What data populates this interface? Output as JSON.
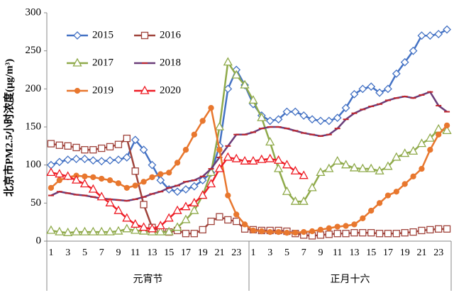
{
  "chart_data": {
    "type": "line",
    "y_label": "北京市PM2.5小时浓度(μg/m³)",
    "categories": [
      "1",
      null,
      "3",
      null,
      "5",
      null,
      "7",
      null,
      "9",
      null,
      "11",
      null,
      "13",
      null,
      "15",
      null,
      "17",
      null,
      "19",
      null,
      "21",
      null,
      "23",
      null,
      "1",
      null,
      "3",
      null,
      "5",
      null,
      "7",
      null,
      "9",
      null,
      "11",
      null,
      "13",
      null,
      "15",
      null,
      "17",
      null,
      "19",
      null,
      "21",
      null,
      "23",
      null
    ],
    "groups": [
      "元宵节",
      "正月十六"
    ],
    "ylim": [
      0,
      300
    ],
    "yticks": [
      0,
      50,
      100,
      150,
      200,
      250,
      300
    ],
    "grid": false,
    "legend": "upper left",
    "series": [
      {
        "name": "2015",
        "color": "#4472c4",
        "marker": "diamond",
        "values": [
          100,
          104,
          107,
          108,
          108,
          106,
          105,
          106,
          107,
          110,
          133,
          120,
          100,
          80,
          68,
          65,
          68,
          72,
          80,
          90,
          125,
          200,
          225,
          205,
          180,
          165,
          158,
          160,
          170,
          170,
          165,
          160,
          158,
          158,
          162,
          175,
          193,
          200,
          203,
          195,
          200,
          220,
          235,
          250,
          270,
          270,
          272,
          278
        ]
      },
      {
        "name": "2016",
        "color": "#a0443c",
        "marker": "square",
        "values": [
          128,
          126,
          125,
          123,
          120,
          120,
          122,
          124,
          127,
          135,
          92,
          48,
          18,
          13,
          12,
          14,
          10,
          10,
          15,
          26,
          32,
          28,
          26,
          16,
          15,
          14,
          14,
          14,
          13,
          10,
          8,
          7,
          8,
          9,
          10,
          10,
          11,
          11,
          11,
          10,
          10,
          10,
          11,
          12,
          14,
          15,
          16,
          16
        ]
      },
      {
        "name": "2017",
        "color": "#8faa4a",
        "marker": "triangle",
        "values": [
          14,
          12,
          11,
          12,
          12,
          12,
          12,
          12,
          13,
          16,
          14,
          13,
          12,
          12,
          12,
          18,
          28,
          40,
          60,
          90,
          150,
          235,
          218,
          205,
          185,
          162,
          130,
          95,
          65,
          52,
          52,
          70,
          90,
          95,
          105,
          100,
          96,
          95,
          95,
          92,
          98,
          110,
          115,
          118,
          128,
          135,
          147,
          145
        ]
      },
      {
        "name": "2018",
        "color": "#6a3d79",
        "marker": "dash",
        "values": [
          60,
          65,
          63,
          61,
          60,
          58,
          56,
          55,
          54,
          53,
          55,
          58,
          62,
          65,
          70,
          73,
          78,
          80,
          85,
          95,
          110,
          125,
          140,
          140,
          143,
          148,
          150,
          150,
          148,
          145,
          142,
          140,
          138,
          140,
          148,
          160,
          168,
          173,
          177,
          180,
          185,
          188,
          190,
          188,
          192,
          196,
          178,
          170
        ]
      },
      {
        "name": "2019",
        "color": "#e8772e",
        "marker": "circle",
        "values": [
          70,
          80,
          84,
          86,
          85,
          84,
          82,
          80,
          76,
          70,
          73,
          78,
          84,
          88,
          90,
          103,
          120,
          140,
          158,
          175,
          120,
          60,
          35,
          22,
          14,
          13,
          12,
          12,
          11,
          11,
          12,
          13,
          15,
          17,
          19,
          20,
          22,
          30,
          40,
          50,
          60,
          65,
          75,
          85,
          95,
          120,
          140,
          152
        ]
      },
      {
        "name": "2020",
        "color": "#ee1c25",
        "marker": "triangle",
        "values": [
          90,
          88,
          85,
          80,
          75,
          68,
          58,
          50,
          40,
          30,
          22,
          18,
          16,
          20,
          30,
          40,
          45,
          50,
          60,
          75,
          95,
          110,
          108,
          105,
          105,
          107,
          108,
          106,
          100,
          92,
          86,
          null,
          null,
          null,
          null,
          null,
          null,
          null,
          null,
          null,
          null,
          null,
          null,
          null,
          null,
          null,
          null,
          null
        ]
      }
    ]
  }
}
